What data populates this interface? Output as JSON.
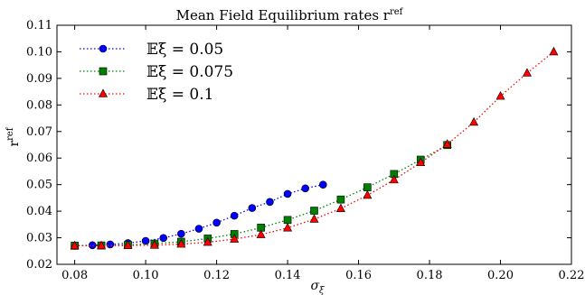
{
  "chart_data": {
    "type": "line",
    "title": "Mean Field Equilibrium rates r",
    "title_sup": "ref",
    "xlabel": "σ",
    "xlabel_sub": "ξ",
    "ylabel": "r",
    "ylabel_sup": "ref",
    "xlim": [
      0.075,
      0.22
    ],
    "ylim": [
      0.02,
      0.11
    ],
    "xticks": [
      "0.08",
      "0.10",
      "0.12",
      "0.14",
      "0.16",
      "0.18",
      "0.20",
      "0.22"
    ],
    "yticks": [
      "0.02",
      "0.03",
      "0.04",
      "0.05",
      "0.06",
      "0.07",
      "0.08",
      "0.09",
      "0.10",
      "0.11"
    ],
    "grid": false,
    "legend_position": "top-left",
    "series": [
      {
        "name": "𝔼ξ = 0.05",
        "color": "#0000ff",
        "marker": "circle",
        "linestyle": "dotted",
        "x": [
          0.08,
          0.085,
          0.09,
          0.095,
          0.1,
          0.105,
          0.11,
          0.115,
          0.12,
          0.125,
          0.13,
          0.135,
          0.14,
          0.145,
          0.15
        ],
        "y": [
          0.027,
          0.0272,
          0.0275,
          0.028,
          0.0288,
          0.0299,
          0.0315,
          0.0334,
          0.0357,
          0.0383,
          0.0412,
          0.0435,
          0.0465,
          0.0486,
          0.05
        ]
      },
      {
        "name": "𝔼ξ = 0.075",
        "color": "#008000",
        "marker": "square",
        "linestyle": "dotted",
        "x": [
          0.08,
          0.0875,
          0.095,
          0.1025,
          0.11,
          0.1175,
          0.125,
          0.1325,
          0.14,
          0.1475,
          0.155,
          0.1625,
          0.17,
          0.1775,
          0.185
        ],
        "y": [
          0.027,
          0.0271,
          0.0273,
          0.0278,
          0.0285,
          0.0297,
          0.0314,
          0.0338,
          0.0367,
          0.0402,
          0.0444,
          0.049,
          0.054,
          0.0594,
          0.0649
        ]
      },
      {
        "name": "𝔼ξ = 0.1",
        "color": "#ff0000",
        "marker": "triangle",
        "linestyle": "dotted",
        "x": [
          0.08,
          0.0875,
          0.095,
          0.1025,
          0.11,
          0.1175,
          0.125,
          0.1325,
          0.14,
          0.1475,
          0.155,
          0.1625,
          0.17,
          0.1775,
          0.185,
          0.1925,
          0.2,
          0.2075,
          0.215
        ],
        "y": [
          0.027,
          0.027,
          0.0271,
          0.0272,
          0.0276,
          0.0283,
          0.0295,
          0.0312,
          0.0337,
          0.037,
          0.041,
          0.046,
          0.0518,
          0.0583,
          0.0652,
          0.0735,
          0.0833,
          0.092,
          0.1
        ]
      }
    ]
  }
}
